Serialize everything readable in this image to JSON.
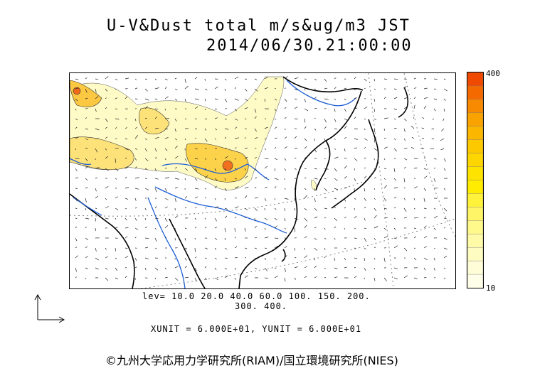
{
  "title": {
    "line1": "U-V&Dust total m/s&ug/m3 JST",
    "line2": "2014/06/30.21:00:00"
  },
  "legend": {
    "max_label": "400",
    "min_label": "10",
    "colors": [
      "#f04a00",
      "#f46a00",
      "#f78a00",
      "#f9a300",
      "#fbb700",
      "#fcc800",
      "#fdd600",
      "#fee200",
      "#ffec00",
      "#fff23a",
      "#fff566",
      "#fff88a",
      "#fffaa8",
      "#fffcc2",
      "#fffdd8",
      "#fffee8"
    ]
  },
  "contour_levels": {
    "line1": "lev= 10.0 20.0 40.0 60.0 100. 150. 200.",
    "line2": "300. 400."
  },
  "units": "XUNIT = 6.000E+01, YUNIT = 6.000E+01",
  "copyright": "©九州大学応用力学研究所(RIAM)/国立環境研究所(NIES)",
  "map": {
    "colors": {
      "land_line": "#000000",
      "river": "#1f5fd6",
      "grid": "#666666"
    }
  }
}
